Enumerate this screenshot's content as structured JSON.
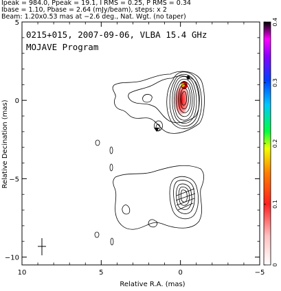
{
  "header": {
    "line1": "Ipeak = 984.0, Ppeak = 19.1, I RMS = 0.25, P RMS = 0.34",
    "line2": "Ibase = 1.10, Pbase = 2.64 (mJy/beam), steps: x 2",
    "line3": "Beam: 1.20x0.53 mas at −2.6 deg., Nat. Wgt. (no taper)"
  },
  "panel": {
    "title": "0215+015, 2007-09-06, VLBA 15.4 GHz",
    "subtitle": "MOJAVE Program"
  },
  "chart_data": {
    "type": "contour",
    "xlabel": "Relative R.A. (mas)",
    "ylabel": "Relative Decination (mas)",
    "xlim": [
      10,
      -5
    ],
    "ylim": [
      -10.5,
      5
    ],
    "xticks": [
      "10",
      "5",
      "0",
      "−5"
    ],
    "yticks": [
      "5",
      "0",
      "−5",
      "−10"
    ],
    "xtick_values": [
      10,
      5,
      0,
      -5
    ],
    "ytick_values": [
      5,
      0,
      -5,
      -10
    ],
    "colorbar": {
      "label_values": [
        0,
        0.1,
        0.2,
        0.3,
        0.4
      ],
      "labels": [
        "0",
        "0.1",
        "0.2",
        "0.3",
        "0.4"
      ],
      "range": [
        0,
        0.4
      ],
      "colors": [
        "#ffffff",
        "#ff3c3c",
        "#ff7f00",
        "#e8ff00",
        "#00ff3c",
        "#00c8ff",
        "#0050ff",
        "#6a00ff",
        "#d800ff",
        "#000000"
      ]
    },
    "core": {
      "x": 0,
      "y": 0
    },
    "secondary_component": {
      "x": 0,
      "y": -6.2
    },
    "beam": {
      "major_mas": 1.2,
      "minor_mas": 0.53,
      "pa_deg": -2.6,
      "x": 9.0,
      "y": -9.3
    }
  }
}
